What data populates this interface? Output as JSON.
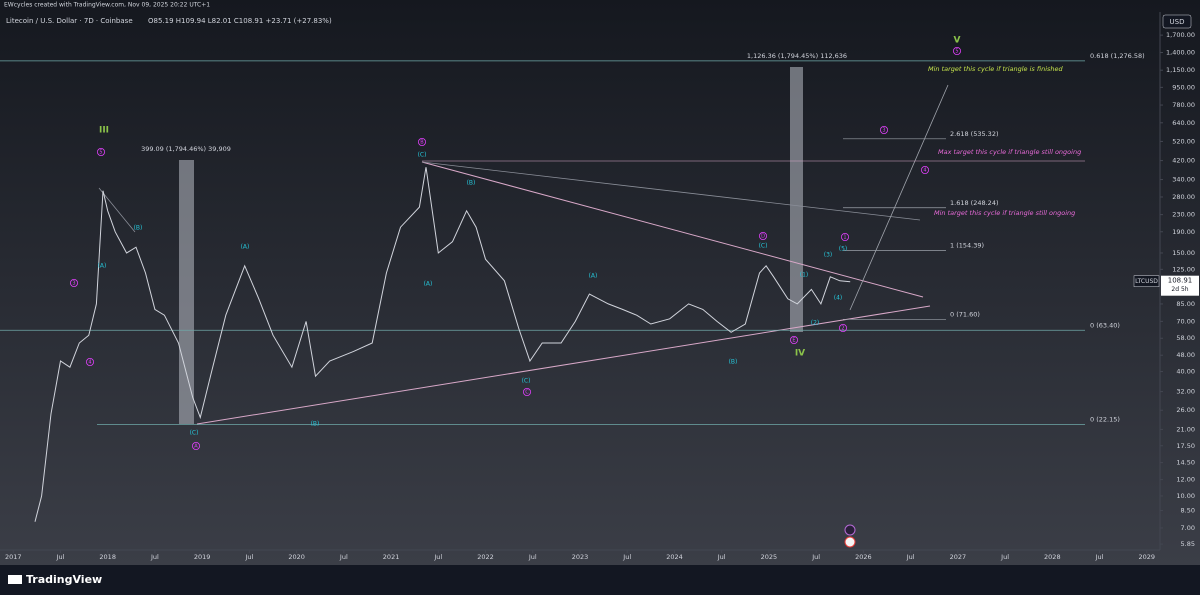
{
  "header": {
    "credit": "EWcycles created with TradingView.com, Nov 09, 2025 20:22 UTC+1",
    "symbol": "Litecoin / U.S. Dollar · 7D · Coinbase",
    "ohlc": "O85.19 H109.94 L82.01 C108.91 +23.71 (+27.83%)"
  },
  "chart_data": {
    "type": "line",
    "currency": "USD",
    "ticker": "LTCUSD",
    "countdown": "2d 5h",
    "log_scale": true,
    "color": "#d1d4dc",
    "x": [
      2017.23,
      2017.3,
      2017.4,
      2017.5,
      2017.6,
      2017.7,
      2017.8,
      2017.88,
      2017.95,
      2018.0,
      2018.08,
      2018.2,
      2018.3,
      2018.4,
      2018.5,
      2018.6,
      2018.75,
      2018.9,
      2018.98,
      2019.1,
      2019.25,
      2019.45,
      2019.6,
      2019.75,
      2019.95,
      2020.1,
      2020.2,
      2020.35,
      2020.6,
      2020.8,
      2020.95,
      2021.1,
      2021.3,
      2021.37,
      2021.5,
      2021.65,
      2021.8,
      2021.9,
      2022.0,
      2022.2,
      2022.35,
      2022.47,
      2022.6,
      2022.8,
      2022.95,
      2023.1,
      2023.3,
      2023.45,
      2023.6,
      2023.75,
      2023.95,
      2024.15,
      2024.3,
      2024.45,
      2024.6,
      2024.75,
      2024.9,
      2024.97,
      2025.05,
      2025.2,
      2025.3,
      2025.45,
      2025.55,
      2025.65,
      2025.75,
      2025.86
    ],
    "values": [
      7.5,
      10,
      25,
      45,
      42,
      55,
      60,
      85,
      300,
      240,
      190,
      150,
      160,
      120,
      80,
      75,
      55,
      30,
      24,
      40,
      75,
      130,
      90,
      60,
      42,
      70,
      38,
      45,
      50,
      55,
      120,
      200,
      250,
      390,
      150,
      170,
      240,
      200,
      140,
      110,
      65,
      45,
      55,
      55,
      70,
      95,
      85,
      80,
      75,
      68,
      72,
      85,
      80,
      70,
      62,
      68,
      120,
      130,
      115,
      90,
      85,
      100,
      85,
      115,
      110,
      108.91
    ],
    "xlim": [
      2016.86,
      2029.14
    ],
    "xticks": [
      2017,
      {
        "value": 2017.5,
        "label": "Jul"
      },
      2018,
      {
        "value": 2018.5,
        "label": "Jul"
      },
      2019,
      {
        "value": 2019.5,
        "label": "Jul"
      },
      2020,
      {
        "value": 2020.5,
        "label": "Jul"
      },
      2021,
      {
        "value": 2021.5,
        "label": "Jul"
      },
      2022,
      {
        "value": 2022.5,
        "label": "Jul"
      },
      2023,
      {
        "value": 2023.5,
        "label": "Jul"
      },
      2024,
      {
        "value": 2024.5,
        "label": "Jul"
      },
      2025,
      {
        "value": 2025.5,
        "label": "Jul"
      },
      2026,
      {
        "value": 2026.5,
        "label": "Jul"
      },
      2027,
      {
        "value": 2027.5,
        "label": "Jul"
      },
      2028,
      {
        "value": 2028.5,
        "label": "Jul"
      },
      2029
    ],
    "ylim": [
      5.6,
      2200
    ],
    "yticks": [
      {
        "value": 1700,
        "label": "1,700.00"
      },
      {
        "value": 1400,
        "label": "1,400.00"
      },
      {
        "value": 1150,
        "label": "1,150.00"
      },
      {
        "value": 950,
        "label": "950.00"
      },
      {
        "value": 780,
        "label": "780.00"
      },
      {
        "value": 640,
        "label": "640.00"
      },
      {
        "value": 520,
        "label": "520.00"
      },
      {
        "value": 420,
        "label": "420.00"
      },
      {
        "value": 340,
        "label": "340.00"
      },
      {
        "value": 280,
        "label": "280.00"
      },
      {
        "value": 230,
        "label": "230.00"
      },
      {
        "value": 190,
        "label": "190.00"
      },
      {
        "value": 150,
        "label": "150.00"
      },
      {
        "value": 125,
        "label": "125.00"
      },
      {
        "value": 85,
        "label": "85.00"
      },
      {
        "value": 70,
        "label": "70.00"
      },
      {
        "value": 58,
        "label": "58.00"
      },
      {
        "value": 48,
        "label": "48.00"
      },
      {
        "value": 40,
        "label": "40.00"
      },
      {
        "value": 32,
        "label": "32.00"
      },
      {
        "value": 26,
        "label": "26.00"
      },
      {
        "value": 21,
        "label": "21.00"
      },
      {
        "value": 17.5,
        "label": "17.50"
      },
      {
        "value": 14.5,
        "label": "14.50"
      },
      {
        "value": 12,
        "label": "12.00"
      },
      {
        "value": 10,
        "label": "10.00"
      },
      {
        "value": 8.5,
        "label": "8.50"
      },
      {
        "value": 7,
        "label": "7.00"
      },
      {
        "value": 5.85,
        "label": "5.85"
      }
    ],
    "fib_levels": [
      {
        "label": "0.618 (1,276.58)",
        "value": 1276.58,
        "color": "#6fa8a8"
      },
      {
        "label": "2.618 (535.32)",
        "value": 535.32,
        "color": "#9aa0a8"
      },
      {
        "label": "1.618 (248.24)",
        "value": 248.24,
        "color": "#9aa0a8"
      },
      {
        "label": "1 (154.39)",
        "value": 154.39,
        "color": "#9aa0a8"
      },
      {
        "label": "0 (71.60)",
        "value": 71.6,
        "color": "#9aa0a8"
      },
      {
        "label": "0 (63.40)",
        "value": 63.4,
        "color": "#6fa8a8"
      },
      {
        "label": "0 (22.15)",
        "value": 22.15,
        "color": "#6fa8a8"
      }
    ],
    "notes": [
      {
        "text": "Min target this cycle if triangle is finished",
        "color": "#c6e34b"
      },
      {
        "text": "Max target this cycle if triangle still ongoing",
        "color": "#e86ad8"
      },
      {
        "text": "Min target this cycle if triangle still ongoing",
        "color": "#e86ad8"
      }
    ],
    "measures": [
      "1,126.36 (1,794.45%) 112,636",
      "399.09 (1,794.46%) 39,909"
    ],
    "waves": [
      {
        "text": "III",
        "color": "#8bc34a"
      },
      {
        "text": "5",
        "color": "#e040fb"
      },
      {
        "text": "3",
        "color": "#e040fb"
      },
      {
        "text": "4",
        "color": "#e040fb"
      },
      {
        "text": "(A)",
        "color": "#26c6da"
      },
      {
        "text": "(B)",
        "color": "#26c6da"
      },
      {
        "text": "(C)",
        "color": "#26c6da"
      },
      {
        "text": "A",
        "color": "#e040fb"
      },
      {
        "text": "(A)",
        "color": "#26c6da"
      },
      {
        "text": "(B)",
        "color": "#26c6da"
      },
      {
        "text": "B",
        "color": "#e040fb"
      },
      {
        "text": "(C)",
        "color": "#26c6da"
      },
      {
        "text": "(A)",
        "color": "#26c6da"
      },
      {
        "text": "(B)",
        "color": "#26c6da"
      },
      {
        "text": "(C)",
        "color": "#26c6da"
      },
      {
        "text": "C",
        "color": "#e040fb"
      },
      {
        "text": "(A)",
        "color": "#26c6da"
      },
      {
        "text": "(B)",
        "color": "#26c6da"
      },
      {
        "text": "D",
        "color": "#e040fb"
      },
      {
        "text": "(C)",
        "color": "#26c6da"
      },
      {
        "text": "E",
        "color": "#e040fb"
      },
      {
        "text": "IV",
        "color": "#8bc34a"
      },
      {
        "text": "(1)",
        "color": "#26c6da"
      },
      {
        "text": "(2)",
        "color": "#26c6da"
      },
      {
        "text": "(3)",
        "color": "#26c6da"
      },
      {
        "text": "(4)",
        "color": "#26c6da"
      },
      {
        "text": "(5)",
        "color": "#26c6da"
      },
      {
        "text": "1",
        "color": "#e040fb"
      },
      {
        "text": "2",
        "color": "#e040fb"
      },
      {
        "text": "3",
        "color": "#e040fb"
      },
      {
        "text": "4",
        "color": "#e040fb"
      },
      {
        "text": "5",
        "color": "#e040fb"
      },
      {
        "text": "V",
        "color": "#8bc34a"
      }
    ]
  },
  "footer": {
    "brand": "TradingView"
  }
}
